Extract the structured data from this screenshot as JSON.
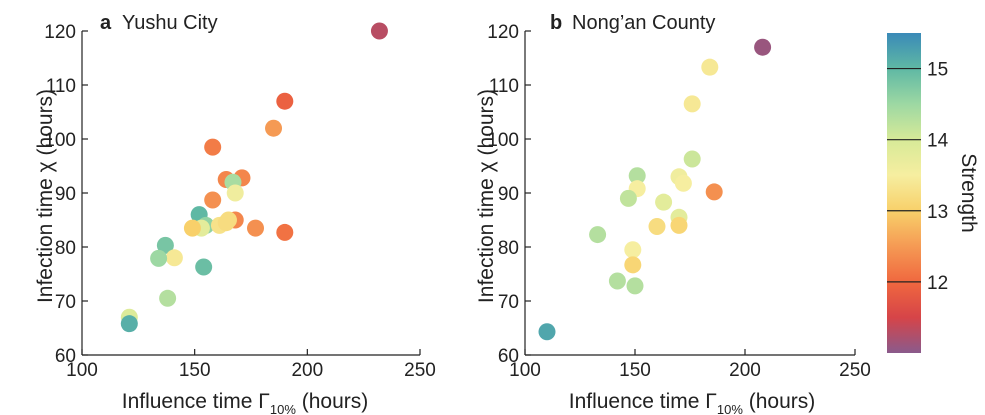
{
  "chart_data": [
    {
      "type": "scatter",
      "panel_label": "a",
      "title": "Yushu City",
      "xlabel": "Influence time Γ",
      "xlabel_subscript": "10%",
      "xlabel_suffix": " (hours)",
      "ylabel": "Infection time χ (hours)",
      "xlim": [
        100,
        250
      ],
      "ylim": [
        60,
        120
      ],
      "xticks": [
        "100",
        "150",
        "200",
        "250"
      ],
      "yticks": [
        "60",
        "70",
        "80",
        "90",
        "100",
        "110",
        "120"
      ],
      "grid": false,
      "points": [
        {
          "x": 232,
          "y": 120,
          "strength": 11.3
        },
        {
          "x": 190,
          "y": 107,
          "strength": 11.9
        },
        {
          "x": 185,
          "y": 102,
          "strength": 12.5
        },
        {
          "x": 158,
          "y": 98.5,
          "strength": 12.2
        },
        {
          "x": 164,
          "y": 92.5,
          "strength": 12.3
        },
        {
          "x": 171,
          "y": 92.8,
          "strength": 12.3
        },
        {
          "x": 167,
          "y": 92,
          "strength": 14.4
        },
        {
          "x": 168,
          "y": 90,
          "strength": 13.6
        },
        {
          "x": 158,
          "y": 88.7,
          "strength": 12.4
        },
        {
          "x": 152,
          "y": 86,
          "strength": 15.0
        },
        {
          "x": 168,
          "y": 85,
          "strength": 12.3
        },
        {
          "x": 165,
          "y": 85,
          "strength": 13.2
        },
        {
          "x": 155,
          "y": 84,
          "strength": 14.6
        },
        {
          "x": 153,
          "y": 83.5,
          "strength": 13.8
        },
        {
          "x": 149,
          "y": 83.5,
          "strength": 13.0
        },
        {
          "x": 161,
          "y": 84,
          "strength": 13.3
        },
        {
          "x": 164,
          "y": 84.5,
          "strength": 13.2
        },
        {
          "x": 177,
          "y": 83.5,
          "strength": 12.4
        },
        {
          "x": 190,
          "y": 82.7,
          "strength": 12.1
        },
        {
          "x": 137,
          "y": 80.3,
          "strength": 14.8
        },
        {
          "x": 141,
          "y": 78,
          "strength": 13.4
        },
        {
          "x": 134,
          "y": 77.9,
          "strength": 14.5
        },
        {
          "x": 154,
          "y": 76.3,
          "strength": 14.9
        },
        {
          "x": 138,
          "y": 70.5,
          "strength": 14.3
        },
        {
          "x": 121,
          "y": 67,
          "strength": 13.9
        },
        {
          "x": 121,
          "y": 65.8,
          "strength": 15.1
        }
      ]
    },
    {
      "type": "scatter",
      "panel_label": "b",
      "title": "Nong’an County",
      "xlabel": "Influence time Γ",
      "xlabel_subscript": "10%",
      "xlabel_suffix": " (hours)",
      "ylabel": "Infection time χ (hours)",
      "xlim": [
        100,
        250
      ],
      "ylim": [
        60,
        120
      ],
      "xticks": [
        "100",
        "150",
        "200",
        "250"
      ],
      "yticks": [
        "60",
        "70",
        "80",
        "90",
        "100",
        "110",
        "120"
      ],
      "grid": false,
      "points": [
        {
          "x": 208,
          "y": 117,
          "strength": 11.1
        },
        {
          "x": 184,
          "y": 113.3,
          "strength": 13.4
        },
        {
          "x": 176,
          "y": 106.5,
          "strength": 13.4
        },
        {
          "x": 176,
          "y": 96.3,
          "strength": 14.1
        },
        {
          "x": 151,
          "y": 93.2,
          "strength": 14.3
        },
        {
          "x": 170,
          "y": 93,
          "strength": 13.6
        },
        {
          "x": 172,
          "y": 91.8,
          "strength": 13.5
        },
        {
          "x": 151,
          "y": 90.8,
          "strength": 13.5
        },
        {
          "x": 186,
          "y": 90.2,
          "strength": 12.4
        },
        {
          "x": 147,
          "y": 89,
          "strength": 14.2
        },
        {
          "x": 163,
          "y": 88.3,
          "strength": 13.8
        },
        {
          "x": 170,
          "y": 85.5,
          "strength": 13.8
        },
        {
          "x": 170,
          "y": 84,
          "strength": 13.1
        },
        {
          "x": 160,
          "y": 83.8,
          "strength": 13.2
        },
        {
          "x": 133,
          "y": 82.3,
          "strength": 14.3
        },
        {
          "x": 149,
          "y": 79.5,
          "strength": 13.5
        },
        {
          "x": 149,
          "y": 76.7,
          "strength": 13.1
        },
        {
          "x": 142,
          "y": 73.7,
          "strength": 14.3
        },
        {
          "x": 150,
          "y": 72.8,
          "strength": 14.3
        },
        {
          "x": 110,
          "y": 64.3,
          "strength": 15.2
        }
      ]
    }
  ],
  "colorbar": {
    "label": "Strength",
    "ticks": [
      "12",
      "13",
      "14",
      "15"
    ],
    "tick_values": [
      12,
      13,
      14,
      15
    ],
    "range": [
      11,
      15.5
    ],
    "colors": [
      "#8a5a8c",
      "#d64448",
      "#f0683f",
      "#f59a54",
      "#f8d06a",
      "#f6eea0",
      "#d7ea98",
      "#9dd8a3",
      "#5fb8a4",
      "#3a8ab8"
    ]
  }
}
